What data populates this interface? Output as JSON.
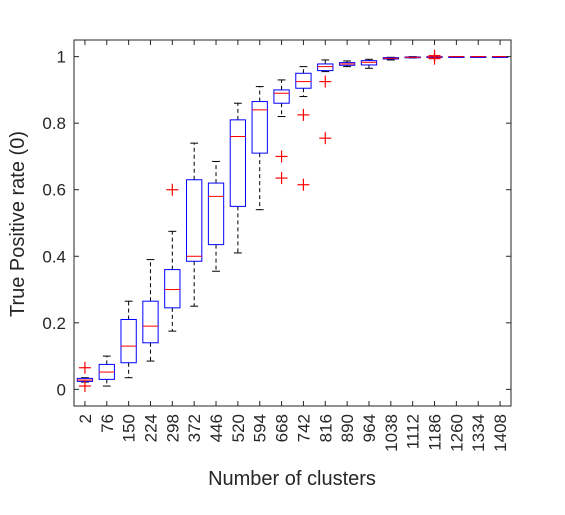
{
  "chart_data": {
    "type": "boxplot",
    "xlabel": "Number of clusters",
    "ylabel": "True Positive rate (0)",
    "ylim": [
      -0.05,
      1.05
    ],
    "yticks": [
      0,
      0.2,
      0.4,
      0.6,
      0.8,
      1
    ],
    "ytick_labels": [
      "0",
      "0.2",
      "0.4",
      "0.6",
      "0.8",
      "1"
    ],
    "categories": [
      "2",
      "76",
      "150",
      "224",
      "298",
      "372",
      "446",
      "520",
      "594",
      "668",
      "742",
      "816",
      "890",
      "964",
      "1038",
      "1112",
      "1186",
      "1260",
      "1334",
      "1408"
    ],
    "boxes": [
      {
        "whisker_low": 0.022,
        "q1": 0.024,
        "median": 0.028,
        "q3": 0.033,
        "whisker_high": 0.035,
        "outliers": [
          0.01,
          0.065
        ]
      },
      {
        "whisker_low": 0.01,
        "q1": 0.03,
        "median": 0.052,
        "q3": 0.075,
        "whisker_high": 0.1,
        "outliers": []
      },
      {
        "whisker_low": 0.035,
        "q1": 0.08,
        "median": 0.13,
        "q3": 0.21,
        "whisker_high": 0.265,
        "outliers": []
      },
      {
        "whisker_low": 0.085,
        "q1": 0.14,
        "median": 0.19,
        "q3": 0.265,
        "whisker_high": 0.39,
        "outliers": []
      },
      {
        "whisker_low": 0.175,
        "q1": 0.245,
        "median": 0.3,
        "q3": 0.36,
        "whisker_high": 0.475,
        "outliers": [
          0.6
        ]
      },
      {
        "whisker_low": 0.25,
        "q1": 0.385,
        "median": 0.4,
        "q3": 0.63,
        "whisker_high": 0.74,
        "outliers": []
      },
      {
        "whisker_low": 0.355,
        "q1": 0.435,
        "median": 0.58,
        "q3": 0.62,
        "whisker_high": 0.685,
        "outliers": []
      },
      {
        "whisker_low": 0.41,
        "q1": 0.55,
        "median": 0.76,
        "q3": 0.81,
        "whisker_high": 0.86,
        "outliers": []
      },
      {
        "whisker_low": 0.54,
        "q1": 0.71,
        "median": 0.84,
        "q3": 0.865,
        "whisker_high": 0.91,
        "outliers": []
      },
      {
        "whisker_low": 0.82,
        "q1": 0.86,
        "median": 0.89,
        "q3": 0.9,
        "whisker_high": 0.93,
        "outliers": [
          0.7,
          0.635
        ]
      },
      {
        "whisker_low": 0.88,
        "q1": 0.905,
        "median": 0.925,
        "q3": 0.95,
        "whisker_high": 0.97,
        "outliers": [
          0.825,
          0.615
        ]
      },
      {
        "whisker_low": 0.955,
        "q1": 0.958,
        "median": 0.97,
        "q3": 0.978,
        "whisker_high": 0.99,
        "outliers": [
          0.925,
          0.755
        ]
      },
      {
        "whisker_low": 0.97,
        "q1": 0.974,
        "median": 0.978,
        "q3": 0.982,
        "whisker_high": 0.987,
        "outliers": []
      },
      {
        "whisker_low": 0.965,
        "q1": 0.975,
        "median": 0.983,
        "q3": 0.988,
        "whisker_high": 0.992,
        "outliers": []
      },
      {
        "whisker_low": 0.99,
        "q1": 0.993,
        "median": 0.995,
        "q3": 0.997,
        "whisker_high": 0.998,
        "outliers": []
      },
      {
        "whisker_low": 0.996,
        "q1": 0.997,
        "median": 0.998,
        "q3": 0.999,
        "whisker_high": 1.0,
        "outliers": []
      },
      {
        "whisker_low": 0.998,
        "q1": 0.999,
        "median": 0.999,
        "q3": 1.0,
        "whisker_high": 1.0,
        "outliers": [
          0.994,
          1.003
        ]
      },
      {
        "whisker_low": 0.999,
        "q1": 1.0,
        "median": 1.0,
        "q3": 1.0,
        "whisker_high": 1.0,
        "outliers": []
      },
      {
        "whisker_low": 1.0,
        "q1": 1.0,
        "median": 1.0,
        "q3": 1.0,
        "whisker_high": 1.0,
        "outliers": []
      },
      {
        "whisker_low": 1.0,
        "q1": 1.0,
        "median": 1.0,
        "q3": 1.0,
        "whisker_high": 1.0,
        "outliers": []
      }
    ],
    "grid": false,
    "colors": {
      "box": "#0000ff",
      "median": "#ff0000",
      "whisker": "#000000",
      "outlier": "#ff0000",
      "axis": "#262626"
    }
  }
}
